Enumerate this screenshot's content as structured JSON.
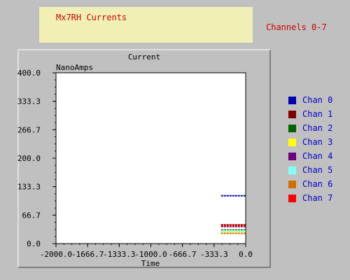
{
  "header": {
    "title": "Mx7RH Currents",
    "channels_label": "Channels 0-7"
  },
  "chart_data": {
    "type": "line",
    "title": "Current",
    "xlabel": "Time",
    "ylabel": "NanoAmps",
    "xlim": [
      -2000.0,
      0.0
    ],
    "ylim": [
      0.0,
      400.0
    ],
    "xticks": [
      "-2000.0",
      "-1666.7",
      "-1333.3",
      "-1000.0",
      "-666.7",
      "-333.3",
      "0.0"
    ],
    "yticks": [
      "400.0",
      "333.3",
      "266.7",
      "200.0",
      "133.3",
      "66.7",
      "0.0"
    ],
    "grid": false,
    "legend_position": "right",
    "series": [
      {
        "name": "Chan 0",
        "color": "#0000b4",
        "x": [
          -260,
          0
        ],
        "values": [
          112,
          112
        ]
      },
      {
        "name": "Chan 1",
        "color": "#800000",
        "x": [
          -260,
          0
        ],
        "values": [
          44,
          44
        ]
      },
      {
        "name": "Chan 2",
        "color": "#006400",
        "x": [
          -260,
          0
        ],
        "values": [
          32,
          32
        ]
      },
      {
        "name": "Chan 3",
        "color": "#ffff00",
        "x": [
          -260,
          0
        ],
        "values": [
          28,
          28
        ]
      },
      {
        "name": "Chan 4",
        "color": "#6a0080",
        "x": [
          -260,
          0
        ],
        "values": [
          40,
          40
        ]
      },
      {
        "name": "Chan 5",
        "color": "#80ffff",
        "x": [
          -260,
          0
        ],
        "values": [
          30,
          30
        ]
      },
      {
        "name": "Chan 6",
        "color": "#d07000",
        "x": [
          -260,
          0
        ],
        "values": [
          24,
          24
        ]
      },
      {
        "name": "Chan 7",
        "color": "#ff0000",
        "x": [
          -260,
          0
        ],
        "values": [
          42,
          42
        ]
      }
    ]
  }
}
